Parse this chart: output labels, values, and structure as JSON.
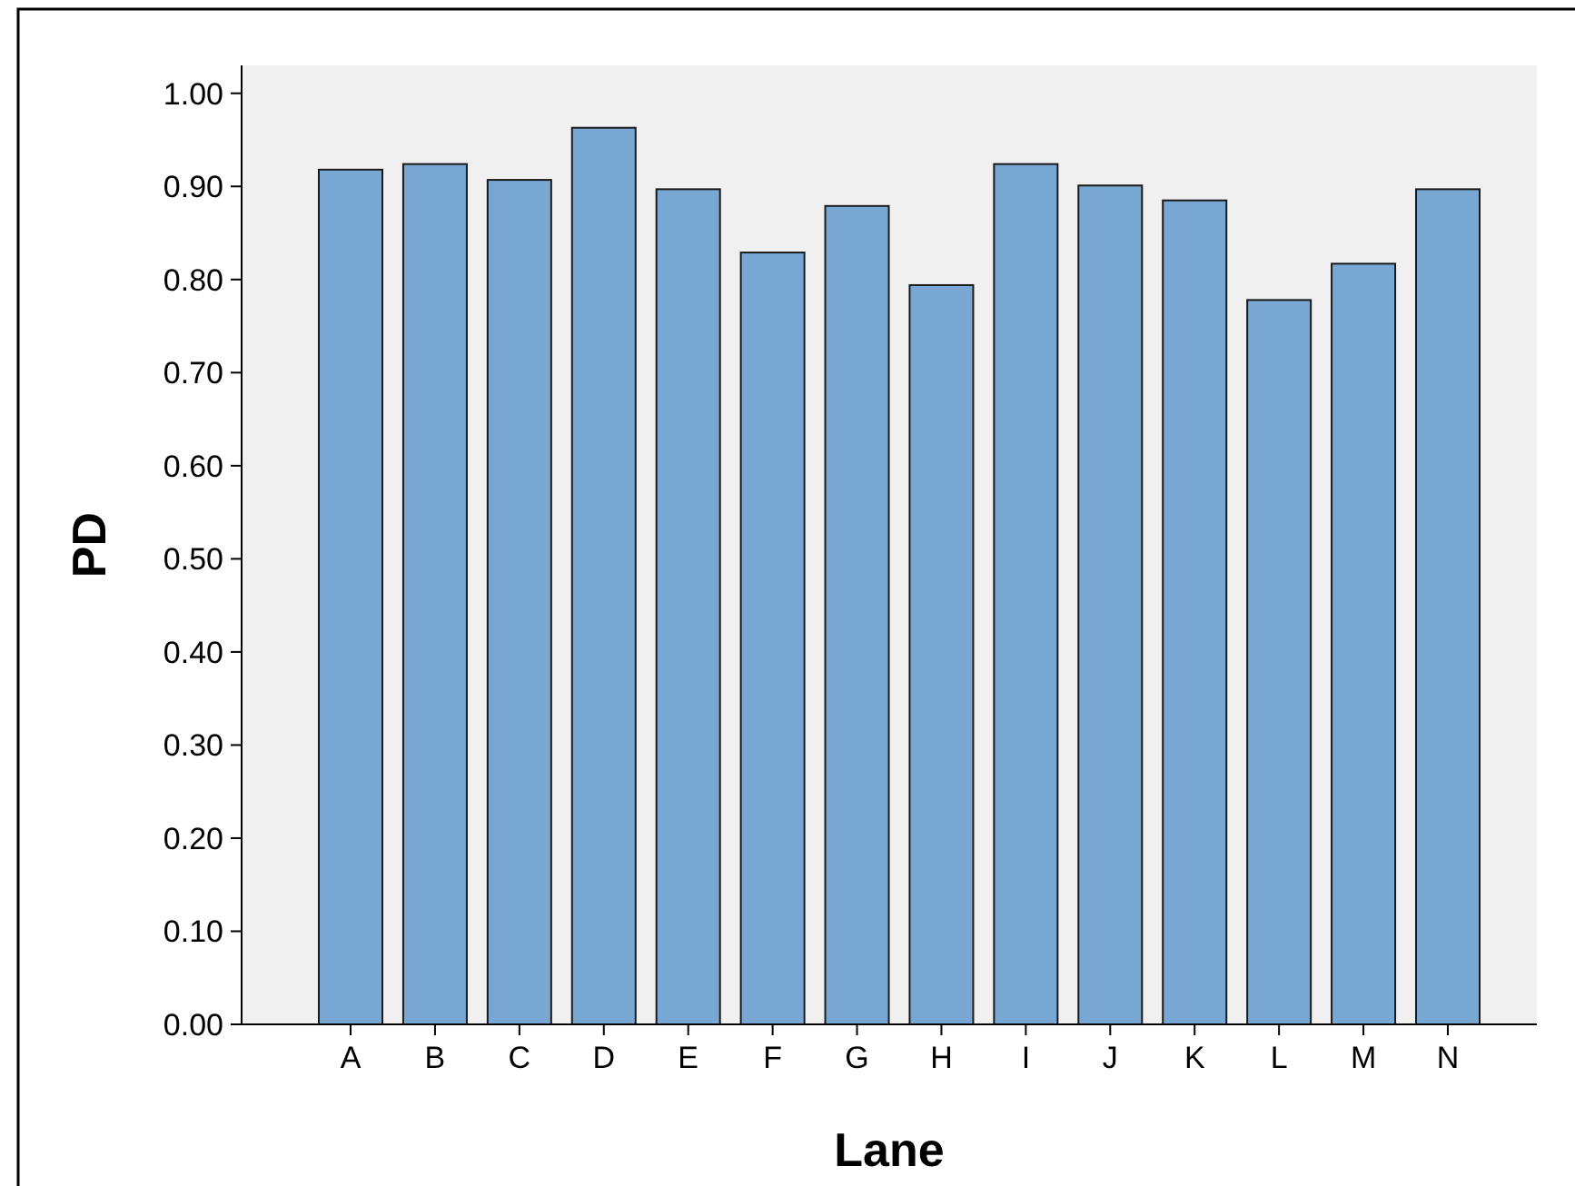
{
  "chart_data": {
    "type": "bar",
    "xlabel": "Lane",
    "ylabel": "PD",
    "categories": [
      "A",
      "B",
      "C",
      "D",
      "E",
      "F",
      "G",
      "H",
      "I",
      "J",
      "K",
      "L",
      "M",
      "N"
    ],
    "values": [
      0.918,
      0.924,
      0.907,
      0.963,
      0.897,
      0.829,
      0.879,
      0.794,
      0.924,
      0.901,
      0.885,
      0.778,
      0.817,
      0.897
    ],
    "color": "#79a7d3",
    "ylim": [
      0,
      1.03
    ],
    "yticks": [
      {
        "value": 0,
        "label": "0.00"
      },
      {
        "value": 0.1,
        "label": "0.10"
      },
      {
        "value": 0.2,
        "label": "0.20"
      },
      {
        "value": 0.3,
        "label": "0.30"
      },
      {
        "value": 0.4,
        "label": "0.40"
      },
      {
        "value": 0.5,
        "label": "0.50"
      },
      {
        "value": 0.6,
        "label": "0.60"
      },
      {
        "value": 0.7,
        "label": "0.70"
      },
      {
        "value": 0.8,
        "label": "0.80"
      },
      {
        "value": 0.9,
        "label": "0.90"
      },
      {
        "value": 1,
        "label": "1.00"
      }
    ]
  }
}
